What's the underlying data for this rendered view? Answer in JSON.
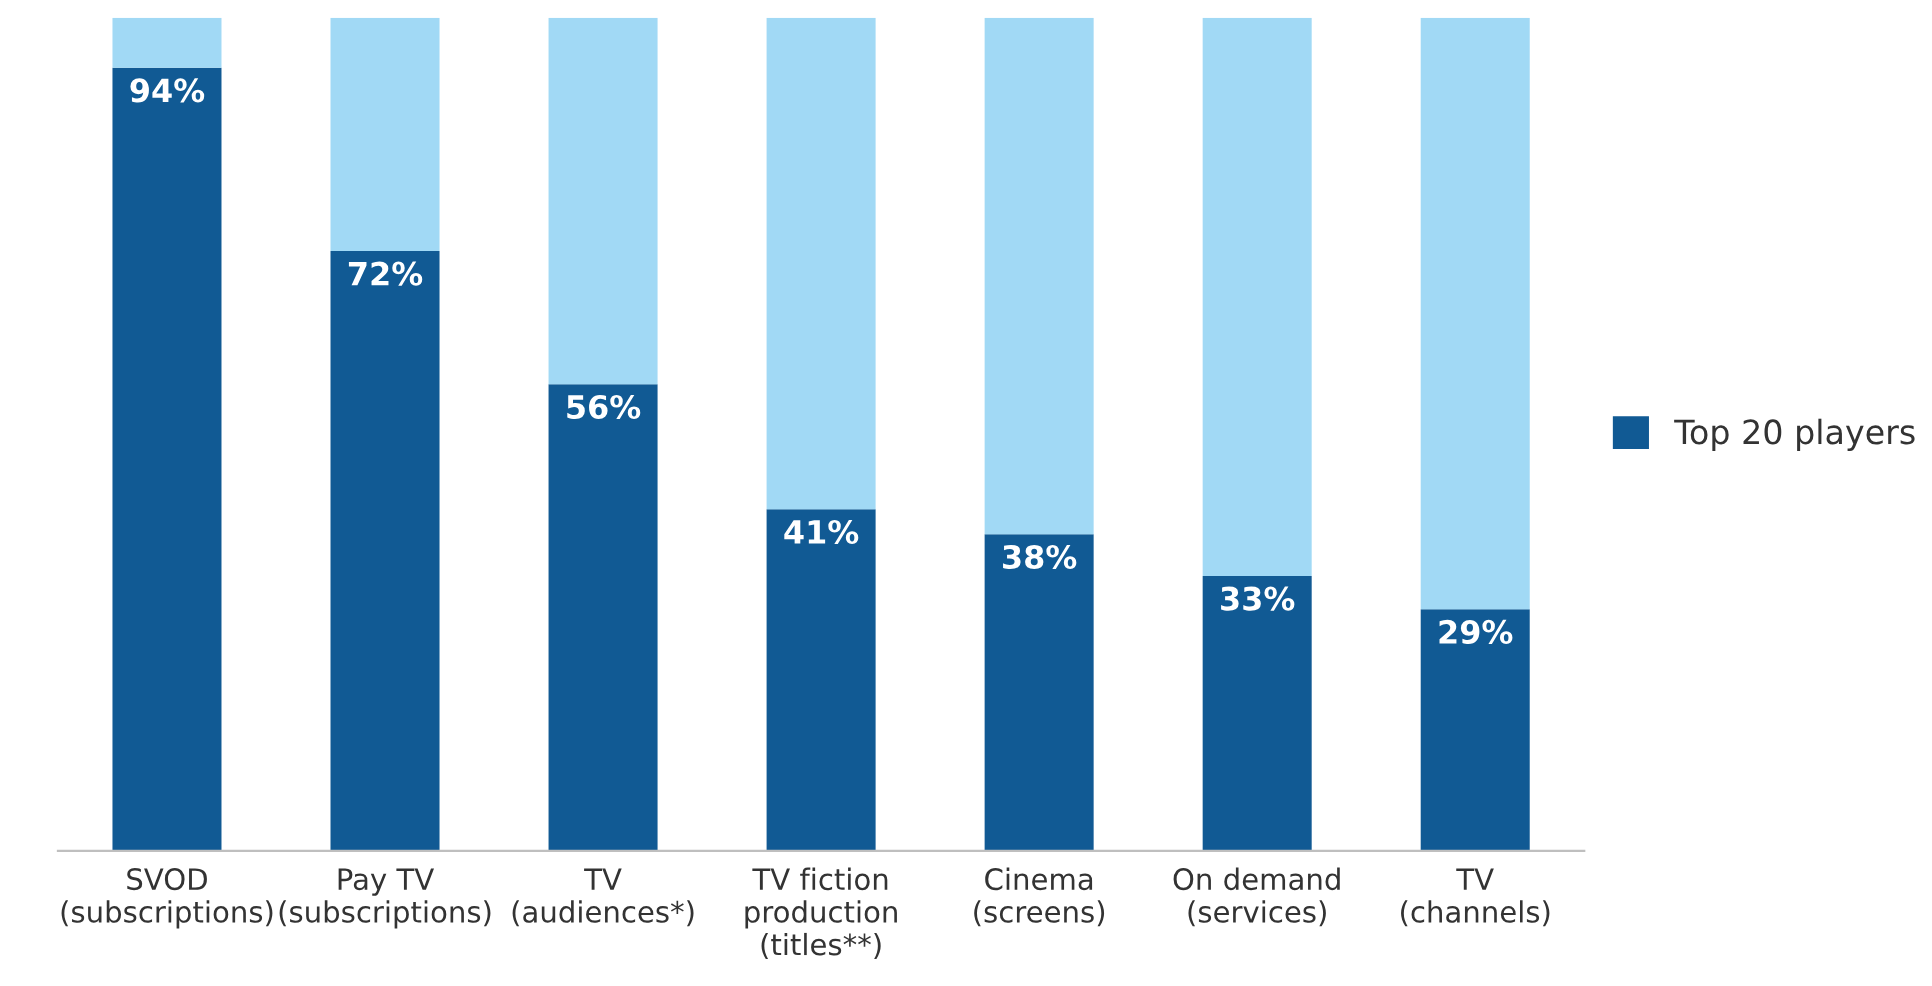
{
  "chart_data": {
    "type": "bar",
    "stacked": true,
    "categories": [
      "SVOD\n(subscriptions)",
      "Pay TV\n(subscriptions)",
      "TV\n(audiences*)",
      "TV fiction\nproduction\n(titles**)",
      "Cinema\n(screens)",
      "On demand\n(services)",
      "TV\n(channels)"
    ],
    "series": [
      {
        "name": "Top 20 players",
        "color": "#115a94",
        "values": [
          94,
          72,
          56,
          41,
          38,
          33,
          29
        ],
        "value_labels": [
          "94%",
          "72%",
          "56%",
          "41%",
          "38%",
          "33%",
          "29%"
        ]
      },
      {
        "color": "#a1d9f5",
        "values": [
          6,
          28,
          44,
          59,
          62,
          67,
          71
        ]
      }
    ],
    "legend": "right",
    "grid": false
  }
}
